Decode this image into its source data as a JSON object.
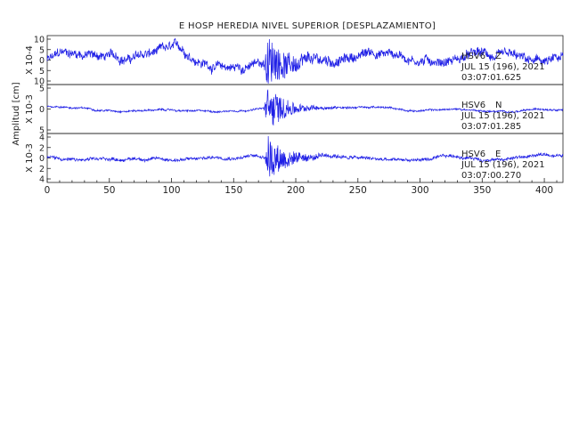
{
  "chart_data": {
    "type": "line",
    "title": "E HOSP HEREDIA NIVEL SUPERIOR [DESPLAZAMIENTO]",
    "ylabel": "Amplitud [cm]",
    "xlim": [
      0,
      415
    ],
    "x_ticks": [
      "0",
      "50",
      "100",
      "150",
      "200",
      "250",
      "300",
      "350",
      "400"
    ],
    "trace_color": "#1f1fe6",
    "panels": [
      {
        "scale_label": "X 10-4",
        "ylim": [
          -11,
          11
        ],
        "y_tick_labels": [
          "10",
          "5",
          "0",
          "5",
          "10"
        ],
        "station": "HSV6",
        "component": "Z",
        "date": "JUL 15 (196), 2021",
        "time": "03:07:01.625",
        "envelope": {
          "quiet": 3.2,
          "peak": 9.5,
          "peak_at": 178,
          "drift": 2.6
        }
      },
      {
        "scale_label": "X 10-3",
        "ylim": [
          -7,
          7
        ],
        "y_tick_labels": [
          "5",
          "0",
          "5"
        ],
        "station": "HSV6",
        "component": "N",
        "date": "JUL 15 (196), 2021",
        "time": "03:07:01.285",
        "envelope": {
          "quiet": 0.4,
          "peak": 6.5,
          "peak_at": 178,
          "drift": 0.5
        }
      },
      {
        "scale_label": "X 10-3",
        "ylim": [
          -4.5,
          4.5
        ],
        "y_tick_labels": [
          "4",
          "2",
          "0",
          "2",
          "4"
        ],
        "station": "HSV6",
        "component": "E",
        "date": "JUL 15 (196), 2021",
        "time": "03:07:00.270",
        "envelope": {
          "quiet": 0.45,
          "peak": 4.0,
          "peak_at": 178,
          "drift": 0.35
        }
      }
    ]
  }
}
